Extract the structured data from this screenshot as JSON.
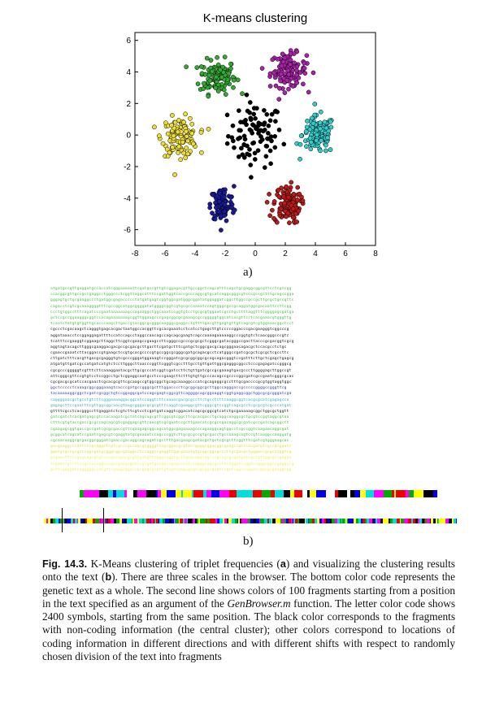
{
  "chart_data": {
    "type": "scatter",
    "title": "K-means clustering",
    "xlim": [
      -8,
      8
    ],
    "ylim": [
      -7,
      6.5
    ],
    "xticks": [
      -8,
      -6,
      -4,
      -2,
      0,
      2,
      4,
      6,
      8
    ],
    "yticks": [
      -6,
      -4,
      -2,
      0,
      2,
      4,
      6
    ],
    "grid": false,
    "clusters": [
      {
        "color": "#000000",
        "center": [
          0,
          0
        ],
        "spread": [
          1.5,
          1.7
        ],
        "n": 90
      },
      {
        "color": "#33aa33",
        "center": [
          -2.5,
          3.7
        ],
        "spread": [
          1.0,
          0.9
        ],
        "n": 120
      },
      {
        "color": "#aa22aa",
        "center": [
          2.2,
          4.1
        ],
        "spread": [
          1.0,
          0.9
        ],
        "n": 120
      },
      {
        "color": "#33cccc",
        "center": [
          4.2,
          0.0
        ],
        "spread": [
          0.9,
          1.0
        ],
        "n": 120
      },
      {
        "color": "#eedd33",
        "center": [
          -5.0,
          -0.1
        ],
        "spread": [
          1.0,
          1.0
        ],
        "n": 120
      },
      {
        "color": "#1a1a9a",
        "center": [
          -2.2,
          -4.4
        ],
        "spread": [
          0.65,
          0.95
        ],
        "n": 100
      },
      {
        "color": "#bb1a1a",
        "center": [
          2.1,
          -4.4
        ],
        "spread": [
          0.75,
          1.0
        ],
        "n": 120
      }
    ]
  },
  "labels": {
    "a": "a)",
    "b": "b)"
  },
  "sequence": {
    "line_colors": [
      "#44bb44",
      "#44bb44",
      "#44bb44",
      "#44bb44",
      "#44bb44",
      "#44bb44",
      "#44bb44",
      "#111111",
      "#111111",
      "#111111",
      "#111111",
      "#111111",
      "#111111",
      "#111111",
      "#111111",
      "#111111",
      "#111111",
      "#3333aa",
      "#3333aa",
      "#33aaaa",
      "#33aaaa",
      "#111111",
      "#44bb44",
      "#44bb44",
      "#44bb44",
      "#44bb44",
      "#44bb44",
      "#dddd33",
      "#dddd33",
      "#eeee55",
      "#eeee55",
      "#eeee55"
    ],
    "lines": [
      "atgatgccgttgaggatgccaccatcgggaaaaattcgatgccgttgtcggagacgttgccggctcagcatttcagctgcgaggcggcgttcctcgtcgg",
      "ccacggcgttgccgccgaggcctgggccctcggttaggcatttccgattggtcaccgcccaggcgtgcatcaggcgggcgtcccgccgctttgcagccgga",
      "gggagtgctgcgaaggccctgatggcgagaccccctatgatgagtcggtggcgatgggcggatatggaggatcggcttggccgccgcttgcgctgccgttc",
      "cagacctcgtcgcaaaggggtttcgccggcatggcggggatatggggcggtcgtgcgccaaaatccagtgggcgccgcaggatggcgacaattccttcgg",
      "ccctgtggcctttcagatcccgaataaaaaaagccagaaggctggcaaatccggtgtcctgcgcgtggaatcgcctgcttttaggtttcggggagcgatga",
      "gctccgccggaagggcggtccacagaaaaaaagcggttggaagcccgagcggcgcgaaagcgccgggggtggcatcacgttcctcacgaaacgtgggttg",
      "tcaatctatgtgtggttgcacccaagcttgaccgtacggcgcgggcaagggcgaggcctgttttgacgttgagtgttgtcagcgtcgtggaaacggctcct",
      "cgccctcgacaagctcagggtgagcacgactaatggccacggttcgcacgaaatcctcatcctgagcttgtcccccggacccgacgaagggtcggcccg",
      "aggataaacctccggaggagattttccatccagcctaggccaacagccagcagcgaagtcagccaaaagaaaaaggcccggtgtctcaacgggcccgtc",
      "tcatttccgaaggtcggaagcttaggcttcggtcgaagccgaagccttcgggccgcccgcgcgctcgggcgatacgggccgacttacccgcgacggtcgcg",
      "aggtagtacagcttgggcgaaggacgacgccgcgacgcttgacttcgatgctttcgatgctcggcgacgcagcgggaacagacgctccacgcctctgc",
      "cgaaccgaaatcttacggaccgtgaagctccgtgcacgccccgtgccggcgcgggcgatgcagacgcctcatgggccgatcgcgctcgcgctcgccttc",
      "cttgatctttcacgttgacgcgagggtgtcgcccgggatggaaagtccgggatcgcgcggcggcgcagcagacgggtccgatttcttgctcgagctgagcg",
      "atgatgttgatcgccatgatcatgtctccttgggcttaacccggttcgggtcgcctttgcctgttgattggcgagggcggcctcccgagagatccgggcg",
      "cgcgcccgggggtcgtttcttcaaaggaatacgcttgcgcccatcggtcgatccttctgttgatcgccgcgaaagtgacgcccttggggagcttggccgt",
      "attcgggcgttccgtgtcctccggcctgctcggaggcaatgcctcccgaagcttctttgtgttgcccacagccgccccggcgatcgccgaatcgggcgcac",
      "cgcgacgcgcatccacgaactcgcacgcgttcgcaagccgtggcggctgcagcaaaggcccatcgcagaggcgcctttgcgaccccgcgtggtaggtggc",
      "ggctccccctcaaagcggcgggaaagtcacccgatgccgggcgctttggacccctcgcggcggcgcttggccagggaccgcccccggggccgggttcg",
      "tacaaaaaggcggctcgatcgcggctgtccggaggcgatccagcgagtcggcgttcaggggcagcggaaggtcggtgaggcggctggcgcgcgggatcga",
      "caggggaacgctgcctgtcttcgggaaaaggacggcatccaggtcttcaaaacgacgcgccttctgcctcttcaaggcggtcacgcgcatcgagagcca",
      "gagagcttccgaatttcgttggcggcaacgtaagcgggacgcgcgtttcaggtcgaaggcgttcgggcgtccggtcagcgcctcgcgcgtcgcccatgat",
      "gttttcgcctcacgggccttgaggatctcgtcttcgtcctcgatgatcaggtcggacatcagcgcggcgtcatctgcgaaaaagcggctggcgctggtt",
      "gatcgatctcacgatgagcgtccacaagatcgctatcagcagcgttcggcgtcggcttcgcacgacctgcaggcaaggcgctgcgtccggtaggcgtaa",
      "ctttcgtgtaccgaccgcgccagcagcgtcgaggagcgttcaacgtcgcgaatccgcttgaacatcgcgccgacaggcgcgatcgccgatcagcggctt",
      "cgaagagcggtgaccgccgatcgcgcgaccgttcgaagagcggcagcatggcgagaaaagcccagaaggcagtggcctcgccggtcaagaacaggcgat",
      "gcggcatcagcatccgaatcgagcgtcgaggtatgcgaaaatccagcccggtcttgcgcgccgtgcgacctgccaaagcagtccgtcaaggccaaggatg",
      "cgcaacaaggcgcgacggcgggatcgaaccgacaggcagcagatcgcctttgacgaagcgatacgctgctcgcgcttcggtttcgatcgtgggaagcac",
      "gacgaaggcccgctcccgcaggctcgtcgcccgccagcgcggggtcagcggacgcgtaccgaggcggacggcgaagccgcccacgacgtcgccgcggacc",
      "ggatgcgccgcgctcggcgatgcgggcggcgaaggcctccaggccgaggttggcgaaatgtgcggcggcgcccttgcgacgctgggaccgcgcatggtcg",
      "gtgaacttctcgaacagcgtgtcccgccagacgcgttgatgttcgggcaggtgcttgcgcaggtagcccgcagcgcgatgatcgctgttggcgccgagga",
      "tcgaatcgccttccgccaccggcccgccgacgcgctccgcgatgacggccgcgcccatccagggcagcgcctcctggatccggtccgggcggccgaggacg",
      "gcttcgaggatcagggggccatgttcgaagcggaccgcgagcgcgttgtcgtcgagcgcgccgcggcgcatccgctcggccaggatcgacgcgaaggcgg"
    ]
  },
  "bars": {
    "top_palette": [
      "#000000",
      "#ff00ff",
      "#ffff00",
      "#00dddd",
      "#0000ee",
      "#ee0000",
      "#00aa00",
      "#ffffff"
    ],
    "bottom_palette": [
      "#000000",
      "#ff00ff",
      "#ffff00",
      "#00dddd",
      "#0000ee",
      "#ee0000",
      "#00aa00"
    ]
  },
  "caption": {
    "fig_label": "Fig. 14.3.",
    "part1": " K-Means clustering of triplet frequencies (",
    "a_ref": "a",
    "part2": ") and visualizing the clustering results onto the text (",
    "b_ref": "b",
    "part3": "). There are three scales in the browser. The bottom color code represents the genetic text as a whole. The second line shows colors of 100 fragments starting from a position in the text specified as an argument of the ",
    "func": "GenBrowser.m",
    "part4": " function. The letter color code shows 2400 symbols, starting from the same position. The black color corresponds to the fragments with non-coding information (the central cluster); other colors correspond to locations of coding information in different directions and with different shifts with respect to randomly chosen division of the text into fragments"
  }
}
